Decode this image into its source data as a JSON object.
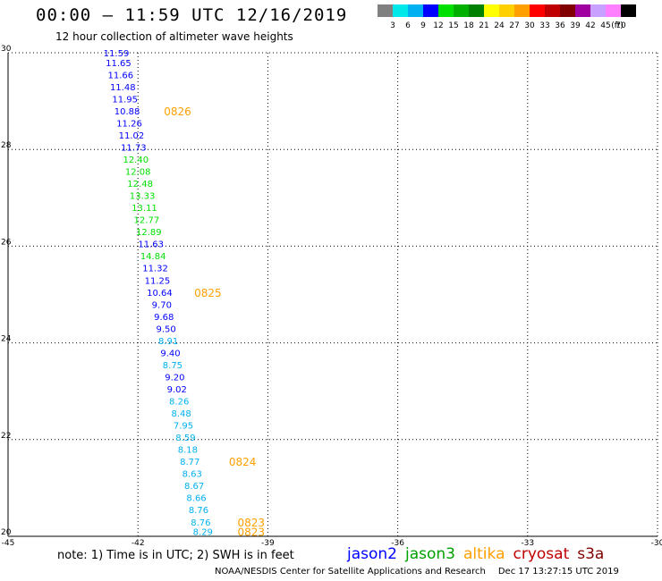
{
  "header": {
    "title": "00:00 – 11:59 UTC 12/16/2019",
    "subtitle": "12 hour collection of altimeter wave heights"
  },
  "color_scale": {
    "labels": [
      "3",
      "6",
      "9",
      "12",
      "15",
      "18",
      "21",
      "24",
      "27",
      "30",
      "33",
      "36",
      "39",
      "42",
      "45",
      "70",
      "(ft)"
    ],
    "colors": [
      "#808080",
      "#00e8e8",
      "#00b0f0",
      "#0000ff",
      "#00e000",
      "#00b000",
      "#008000",
      "#ffff00",
      "#ffd000",
      "#ffa000",
      "#ff0000",
      "#c00000",
      "#800000",
      "#a000a0",
      "#c8a0ff",
      "#ff80ff",
      "#000000"
    ]
  },
  "chart_data": {
    "type": "scatter",
    "title": "",
    "xlabel": "",
    "ylabel": "",
    "xlim": [
      -45,
      -30
    ],
    "ylim": [
      20,
      30
    ],
    "x_ticks": [
      "-45",
      "-42",
      "-39",
      "-36",
      "-33",
      "-30"
    ],
    "y_ticks": [
      "20",
      "22",
      "24",
      "26",
      "28",
      "30"
    ],
    "grid": true,
    "points": [
      {
        "lat": 30.0,
        "lon": -42.5,
        "swh": "11.59",
        "color": "#0000ff"
      },
      {
        "lat": 29.8,
        "lon": -42.45,
        "swh": "11.65",
        "color": "#0000ff"
      },
      {
        "lat": 29.55,
        "lon": -42.4,
        "swh": "11.66",
        "color": "#0000ff"
      },
      {
        "lat": 29.3,
        "lon": -42.35,
        "swh": "11.48",
        "color": "#0000ff"
      },
      {
        "lat": 29.05,
        "lon": -42.3,
        "swh": "11.95",
        "color": "#0000ff"
      },
      {
        "lat": 28.8,
        "lon": -42.25,
        "swh": "10.88",
        "color": "#0000ff"
      },
      {
        "lat": 28.55,
        "lon": -42.2,
        "swh": "11.26",
        "color": "#0000ff"
      },
      {
        "lat": 28.3,
        "lon": -42.15,
        "swh": "11.02",
        "color": "#0000ff"
      },
      {
        "lat": 28.05,
        "lon": -42.1,
        "swh": "11.73",
        "color": "#0000ff"
      },
      {
        "lat": 27.8,
        "lon": -42.05,
        "swh": "12.40",
        "color": "#00e000"
      },
      {
        "lat": 27.55,
        "lon": -42.0,
        "swh": "12.08",
        "color": "#00e000"
      },
      {
        "lat": 27.3,
        "lon": -41.95,
        "swh": "12.48",
        "color": "#00e000"
      },
      {
        "lat": 27.05,
        "lon": -41.9,
        "swh": "13.33",
        "color": "#00e000"
      },
      {
        "lat": 26.8,
        "lon": -41.85,
        "swh": "13.11",
        "color": "#00e000"
      },
      {
        "lat": 26.55,
        "lon": -41.8,
        "swh": "12.77",
        "color": "#00e000"
      },
      {
        "lat": 26.3,
        "lon": -41.75,
        "swh": "12.89",
        "color": "#00e000"
      },
      {
        "lat": 26.05,
        "lon": -41.7,
        "swh": "11.63",
        "color": "#0000ff"
      },
      {
        "lat": 25.8,
        "lon": -41.65,
        "swh": "14.84",
        "color": "#00e000"
      },
      {
        "lat": 25.55,
        "lon": -41.6,
        "swh": "11.32",
        "color": "#0000ff"
      },
      {
        "lat": 25.3,
        "lon": -41.55,
        "swh": "11.25",
        "color": "#0000ff"
      },
      {
        "lat": 25.05,
        "lon": -41.5,
        "swh": "10.64",
        "color": "#0000ff"
      },
      {
        "lat": 24.8,
        "lon": -41.45,
        "swh": "9.70",
        "color": "#0000ff"
      },
      {
        "lat": 24.55,
        "lon": -41.4,
        "swh": "9.68",
        "color": "#0000ff"
      },
      {
        "lat": 24.3,
        "lon": -41.35,
        "swh": "9.50",
        "color": "#0000ff"
      },
      {
        "lat": 24.05,
        "lon": -41.3,
        "swh": "8.91",
        "color": "#00b0f0"
      },
      {
        "lat": 23.8,
        "lon": -41.25,
        "swh": "9.40",
        "color": "#0000ff"
      },
      {
        "lat": 23.55,
        "lon": -41.2,
        "swh": "8.75",
        "color": "#00b0f0"
      },
      {
        "lat": 23.3,
        "lon": -41.15,
        "swh": "9.20",
        "color": "#0000ff"
      },
      {
        "lat": 23.05,
        "lon": -41.1,
        "swh": "9.02",
        "color": "#0000ff"
      },
      {
        "lat": 22.8,
        "lon": -41.05,
        "swh": "8.26",
        "color": "#00b0f0"
      },
      {
        "lat": 22.55,
        "lon": -41.0,
        "swh": "8.48",
        "color": "#00b0f0"
      },
      {
        "lat": 22.3,
        "lon": -40.95,
        "swh": "7.95",
        "color": "#00b0f0"
      },
      {
        "lat": 22.05,
        "lon": -40.9,
        "swh": "8.59",
        "color": "#00b0f0"
      },
      {
        "lat": 21.8,
        "lon": -40.85,
        "swh": "8.18",
        "color": "#00b0f0"
      },
      {
        "lat": 21.55,
        "lon": -40.8,
        "swh": "8.77",
        "color": "#00b0f0"
      },
      {
        "lat": 21.3,
        "lon": -40.75,
        "swh": "8.63",
        "color": "#00b0f0"
      },
      {
        "lat": 21.05,
        "lon": -40.7,
        "swh": "8.67",
        "color": "#00b0f0"
      },
      {
        "lat": 20.8,
        "lon": -40.65,
        "swh": "8.66",
        "color": "#00b0f0"
      },
      {
        "lat": 20.55,
        "lon": -40.6,
        "swh": "8.76",
        "color": "#00b0f0"
      },
      {
        "lat": 20.3,
        "lon": -40.55,
        "swh": "8.76",
        "color": "#00b0f0"
      },
      {
        "lat": 20.1,
        "lon": -40.5,
        "swh": "8.29",
        "color": "#00b0f0"
      }
    ],
    "time_labels": [
      {
        "lat": 28.8,
        "lon": -41.4,
        "text": "0826"
      },
      {
        "lat": 25.05,
        "lon": -40.7,
        "text": "0825"
      },
      {
        "lat": 21.55,
        "lon": -39.9,
        "text": "0824"
      },
      {
        "lat": 20.3,
        "lon": -39.7,
        "text": "0823"
      },
      {
        "lat": 20.1,
        "lon": -39.7,
        "text": "0823"
      }
    ],
    "time_label_color": "#ffa000"
  },
  "note": "note: 1) Time is in UTC; 2) SWH is in feet",
  "satellites": [
    {
      "name": "jason2",
      "color": "#0000ff"
    },
    {
      "name": "jason3",
      "color": "#00a000"
    },
    {
      "name": "altika",
      "color": "#ffa000"
    },
    {
      "name": "cryosat",
      "color": "#c00000"
    },
    {
      "name": "s3a",
      "color": "#800000"
    }
  ],
  "footer": {
    "credit": "NOAA/NESDIS Center for Satellite Applications and Research",
    "timestamp": "Dec 17 13:27:15 UTC 2019"
  }
}
